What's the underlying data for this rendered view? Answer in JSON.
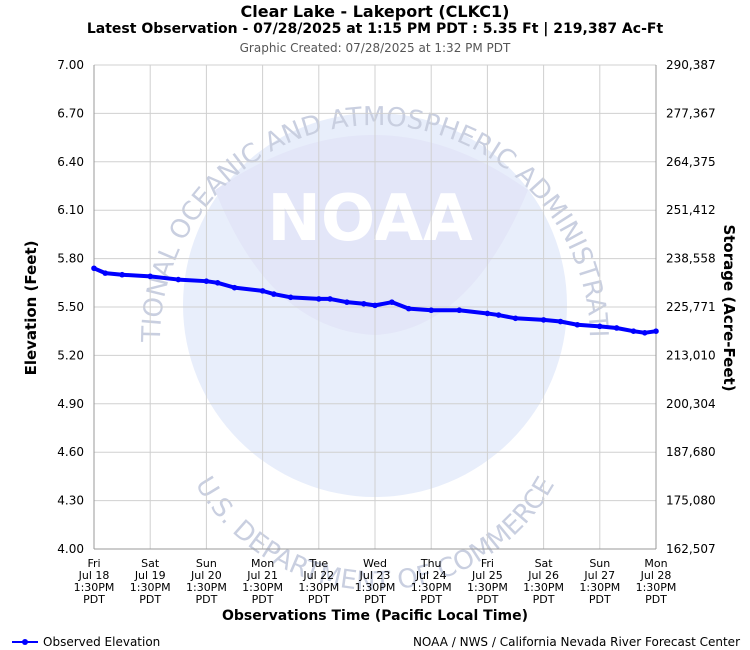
{
  "header": {
    "title": "Clear Lake - Lakeport (CLKC1)",
    "subtitle": "Latest Observation - 07/28/2025 at 1:15 PM PDT : 5.35 Ft | 219,387 Ac-Ft",
    "created": "Graphic Created: 07/28/2025 at 1:32 PM PDT"
  },
  "chart_data": {
    "type": "line",
    "xlabel": "Observations Time (Pacific Local Time)",
    "ylabel": "Elevation (Feet)",
    "y2label": "Storage (Acre-Feet)",
    "ylim": [
      4.0,
      7.0
    ],
    "yticks": [
      "4.00",
      "4.30",
      "4.60",
      "4.90",
      "5.20",
      "5.50",
      "5.80",
      "6.10",
      "6.40",
      "6.70",
      "7.00"
    ],
    "y2ticks": [
      "162,507",
      "175,080",
      "187,680",
      "200,304",
      "213,010",
      "225,771",
      "238,558",
      "251,412",
      "264,375",
      "277,367",
      "290,387"
    ],
    "xticks": [
      [
        "Fri",
        "Jul 18",
        "1:30PM",
        "PDT"
      ],
      [
        "Sat",
        "Jul 19",
        "1:30PM",
        "PDT"
      ],
      [
        "Sun",
        "Jul 20",
        "1:30PM",
        "PDT"
      ],
      [
        "Mon",
        "Jul 21",
        "1:30PM",
        "PDT"
      ],
      [
        "Tue",
        "Jul 22",
        "1:30PM",
        "PDT"
      ],
      [
        "Wed",
        "Jul 23",
        "1:30PM",
        "PDT"
      ],
      [
        "Thu",
        "Jul 24",
        "1:30PM",
        "PDT"
      ],
      [
        "Fri",
        "Jul 25",
        "1:30PM",
        "PDT"
      ],
      [
        "Sat",
        "Jul 26",
        "1:30PM",
        "PDT"
      ],
      [
        "Sun",
        "Jul 27",
        "1:30PM",
        "PDT"
      ],
      [
        "Mon",
        "Jul 28",
        "1:30PM",
        "PDT"
      ]
    ],
    "grid": true,
    "series": [
      {
        "name": "Observed Elevation",
        "color": "#0000ff",
        "x_days_from_jul18_1330": [
          0.0,
          0.2,
          0.5,
          1.0,
          1.5,
          2.0,
          2.2,
          2.5,
          3.0,
          3.2,
          3.5,
          4.0,
          4.2,
          4.5,
          4.8,
          5.0,
          5.3,
          5.6,
          6.0,
          6.5,
          7.0,
          7.2,
          7.5,
          8.0,
          8.3,
          8.6,
          9.0,
          9.3,
          9.6,
          9.8,
          10.0
        ],
        "values": [
          5.74,
          5.71,
          5.7,
          5.69,
          5.67,
          5.66,
          5.65,
          5.62,
          5.6,
          5.58,
          5.56,
          5.55,
          5.55,
          5.53,
          5.52,
          5.51,
          5.53,
          5.49,
          5.48,
          5.48,
          5.46,
          5.45,
          5.43,
          5.42,
          5.41,
          5.39,
          5.38,
          5.37,
          5.35,
          5.34,
          5.35
        ]
      }
    ]
  },
  "watermark": {
    "logo_text": "NOAA",
    "top_text": "NATIONAL OCEANIC AND ATMOSPHERIC ADMINISTRATION",
    "bottom_text": "U.S. DEPARTMENT OF COMMERCE"
  },
  "legend": {
    "label": "Observed Elevation"
  },
  "footer": {
    "credit": "NOAA / NWS / California Nevada River Forecast Center"
  }
}
